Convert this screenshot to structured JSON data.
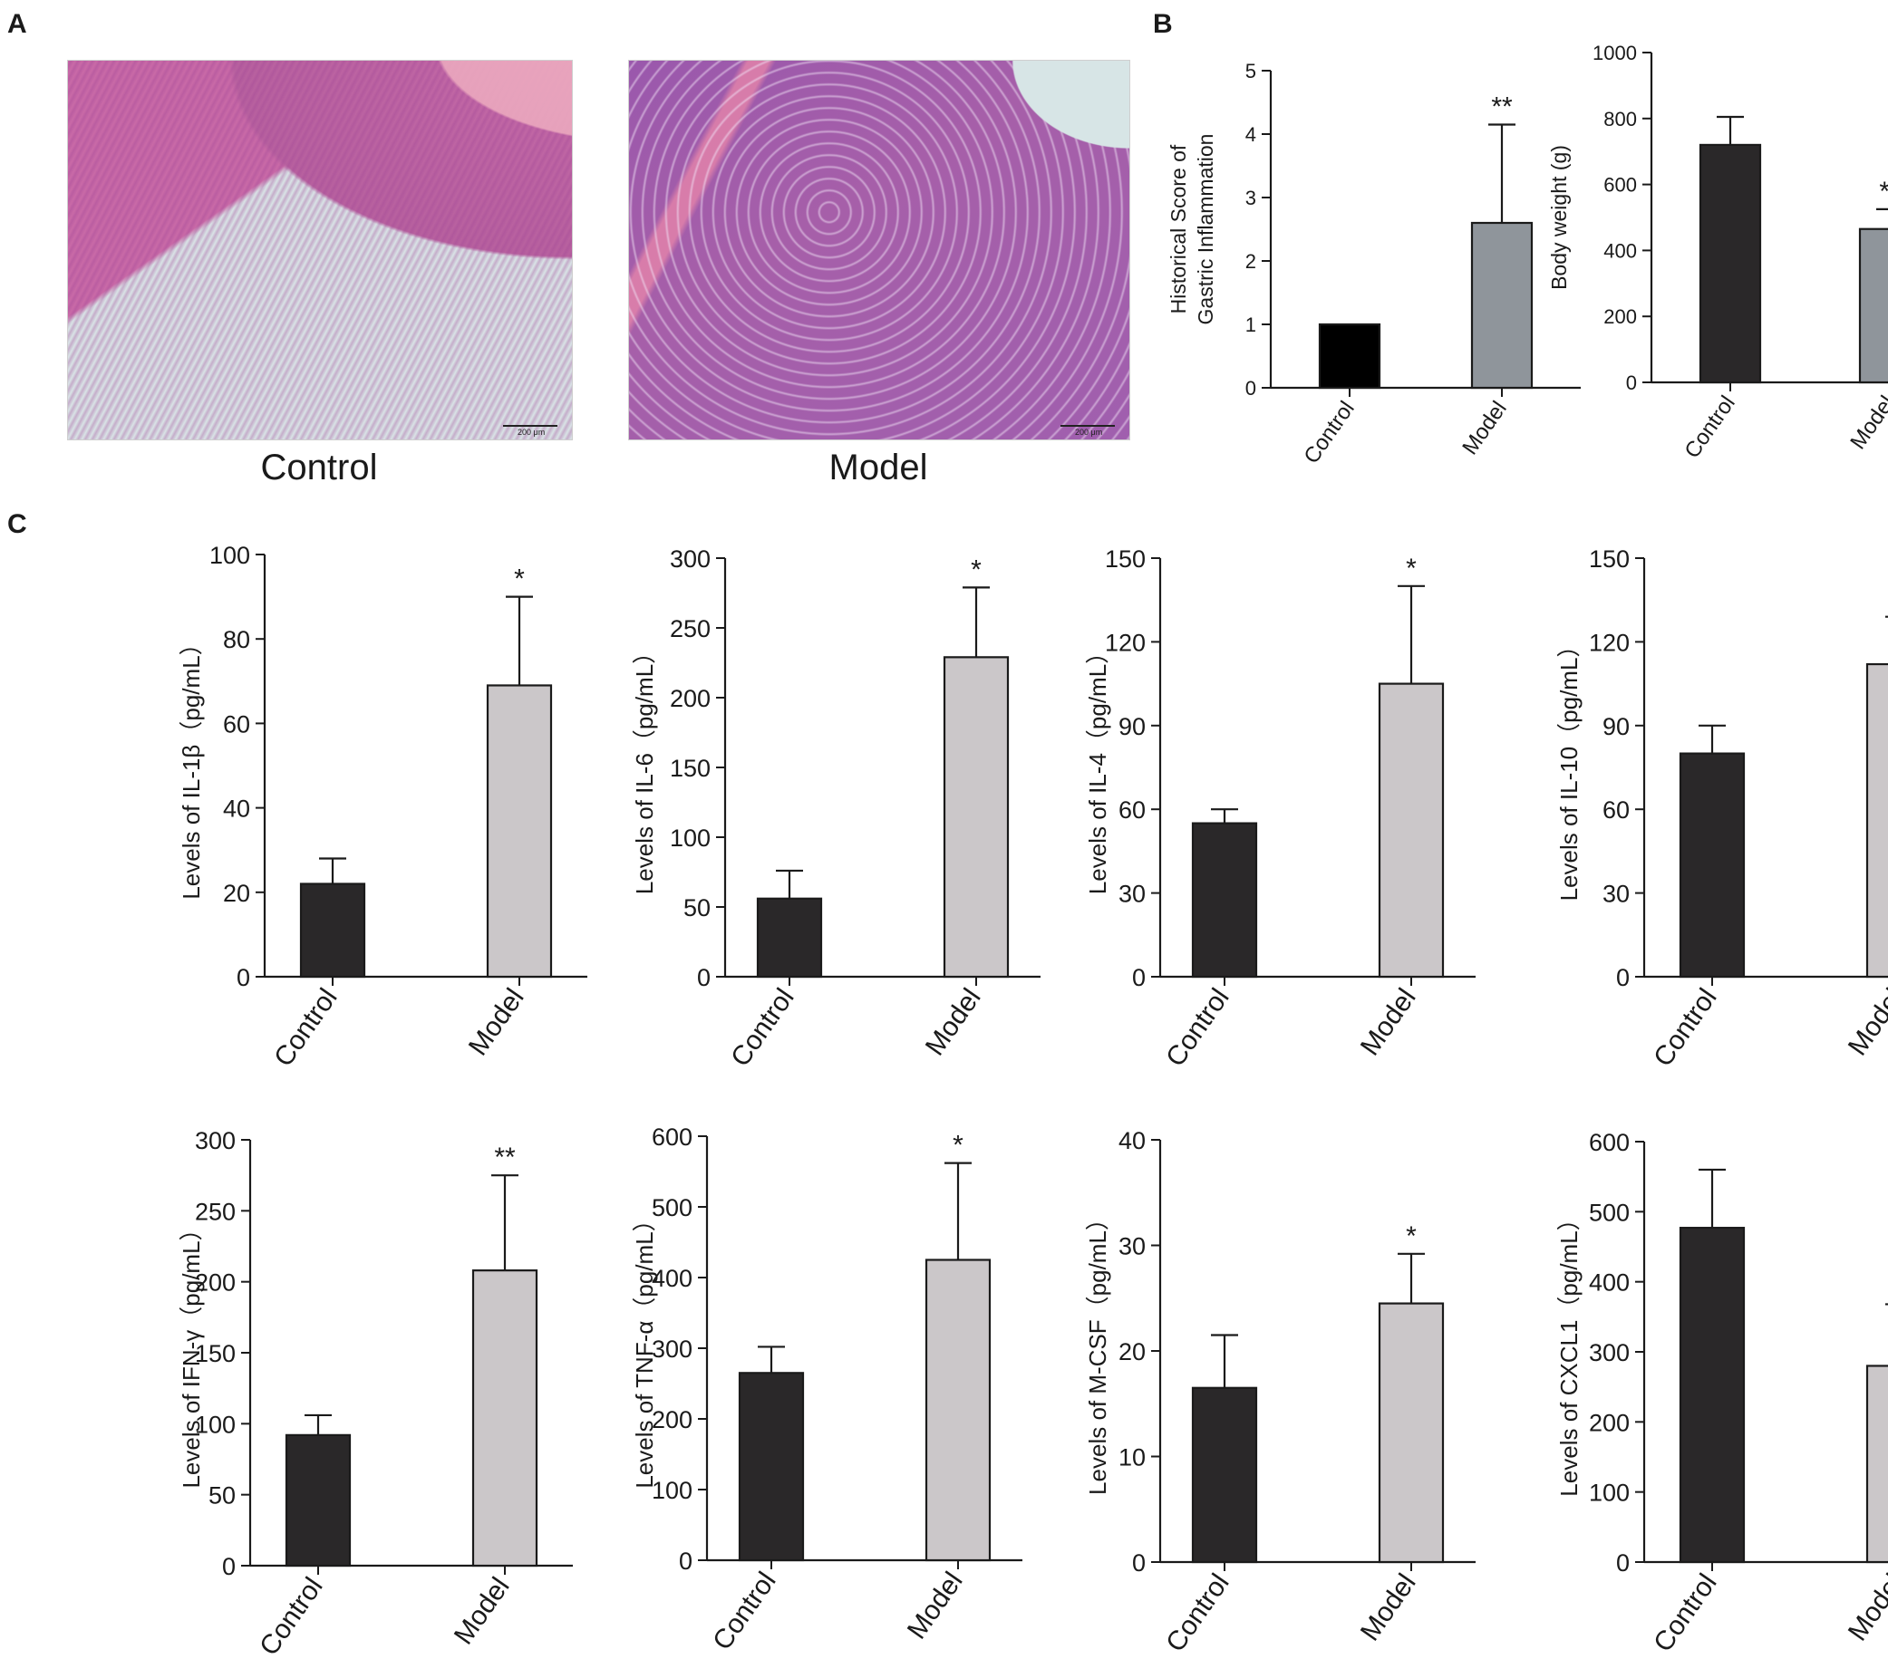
{
  "panels": {
    "a": {
      "letter": "A"
    },
    "b": {
      "letter": "B"
    },
    "c": {
      "letter": "C"
    }
  },
  "histology": {
    "control": {
      "caption": "Control",
      "scale": "200 μm"
    },
    "model": {
      "caption": "Model",
      "scale": "200 μm"
    }
  },
  "colors": {
    "control": "#2a2829",
    "model_b": "#8f959b",
    "model_c": "#cbc7c9",
    "axis": "#1a1a1a"
  },
  "chart_data": [
    {
      "id": "b1",
      "type": "bar",
      "categories": [
        "Control",
        "Model"
      ],
      "values": [
        1,
        2.6
      ],
      "errors": [
        0,
        1.55
      ],
      "significance": [
        "",
        "**"
      ],
      "ylabel_lines": [
        "Historical Score of",
        "Gastric Inflammation"
      ],
      "ylim": [
        0,
        5
      ],
      "yticks": [
        0,
        1,
        2,
        3,
        4,
        5
      ],
      "colors": [
        "#000000",
        "#8f959b"
      ]
    },
    {
      "id": "b2",
      "type": "bar",
      "categories": [
        "Control",
        "Model"
      ],
      "values": [
        720,
        465
      ],
      "errors": [
        85,
        60
      ],
      "significance": [
        "",
        "**"
      ],
      "ylabel_lines": [
        "Body weight (g)"
      ],
      "ylim": [
        0,
        1000
      ],
      "yticks": [
        0,
        200,
        400,
        600,
        800,
        1000
      ],
      "colors": [
        "#2a2829",
        "#8f959b"
      ]
    },
    {
      "id": "c1",
      "type": "bar",
      "categories": [
        "Control",
        "Model"
      ],
      "values": [
        22,
        69
      ],
      "errors": [
        6,
        21
      ],
      "significance": [
        "",
        "*"
      ],
      "ylabel_lines": [
        "Levels of IL-1β（pg/mL）"
      ],
      "ylim": [
        0,
        100
      ],
      "yticks": [
        0,
        20,
        40,
        60,
        80,
        100
      ],
      "colors": [
        "#2a2829",
        "#cbc7c9"
      ]
    },
    {
      "id": "c2",
      "type": "bar",
      "categories": [
        "Control",
        "Model"
      ],
      "values": [
        56,
        229
      ],
      "errors": [
        20,
        50
      ],
      "significance": [
        "",
        "*"
      ],
      "ylabel_lines": [
        "Levels of IL-6（pg/mL）"
      ],
      "ylim": [
        0,
        300
      ],
      "yticks": [
        0,
        50,
        100,
        150,
        200,
        250,
        300
      ],
      "colors": [
        "#2a2829",
        "#cbc7c9"
      ]
    },
    {
      "id": "c3",
      "type": "bar",
      "categories": [
        "Control",
        "Model"
      ],
      "values": [
        55,
        105
      ],
      "errors": [
        5,
        35
      ],
      "significance": [
        "",
        "*"
      ],
      "ylabel_lines": [
        "Levels of IL-4（pg/mL）"
      ],
      "ylim": [
        0,
        150
      ],
      "yticks": [
        0,
        30,
        60,
        90,
        120,
        150
      ],
      "colors": [
        "#2a2829",
        "#cbc7c9"
      ]
    },
    {
      "id": "c4",
      "type": "bar",
      "categories": [
        "Control",
        "Model"
      ],
      "values": [
        80,
        112
      ],
      "errors": [
        10,
        17
      ],
      "significance": [
        "",
        "**"
      ],
      "ylabel_lines": [
        "Levels of IL-10（pg/mL）"
      ],
      "ylim": [
        0,
        150
      ],
      "yticks": [
        0,
        30,
        60,
        90,
        120,
        150
      ],
      "colors": [
        "#2a2829",
        "#cbc7c9"
      ]
    },
    {
      "id": "c5",
      "type": "bar",
      "categories": [
        "Control",
        "Model"
      ],
      "values": [
        92,
        208
      ],
      "errors": [
        14,
        67
      ],
      "significance": [
        "",
        "**"
      ],
      "ylabel_lines": [
        "Levels of IFN-γ（pg/mL）"
      ],
      "ylim": [
        0,
        300
      ],
      "yticks": [
        0,
        50,
        100,
        150,
        200,
        250,
        300
      ],
      "colors": [
        "#2a2829",
        "#cbc7c9"
      ]
    },
    {
      "id": "c6",
      "type": "bar",
      "categories": [
        "Control",
        "Model"
      ],
      "values": [
        265,
        425
      ],
      "errors": [
        37,
        137
      ],
      "significance": [
        "",
        "*"
      ],
      "ylabel_lines": [
        "Levels of TNF-α（pg/mL）"
      ],
      "ylim": [
        0,
        600
      ],
      "yticks": [
        0,
        100,
        200,
        300,
        400,
        500,
        600
      ],
      "colors": [
        "#2a2829",
        "#cbc7c9"
      ]
    },
    {
      "id": "c7",
      "type": "bar",
      "categories": [
        "Control",
        "Model"
      ],
      "values": [
        16.5,
        24.5
      ],
      "errors": [
        5,
        4.7
      ],
      "significance": [
        "",
        "*"
      ],
      "ylabel_lines": [
        "Levels of M-CSF（pg/mL）"
      ],
      "ylim": [
        0,
        40
      ],
      "yticks": [
        0,
        10,
        20,
        30,
        40
      ],
      "colors": [
        "#2a2829",
        "#cbc7c9"
      ]
    },
    {
      "id": "c8",
      "type": "bar",
      "categories": [
        "Control",
        "Model"
      ],
      "values": [
        477,
        280
      ],
      "errors": [
        83,
        88
      ],
      "significance": [
        "",
        "**"
      ],
      "ylabel_lines": [
        "Levels of CXCL1（pg/mL）"
      ],
      "ylim": [
        0,
        600
      ],
      "yticks": [
        0,
        100,
        200,
        300,
        400,
        500,
        600
      ],
      "colors": [
        "#2a2829",
        "#cbc7c9"
      ]
    }
  ]
}
